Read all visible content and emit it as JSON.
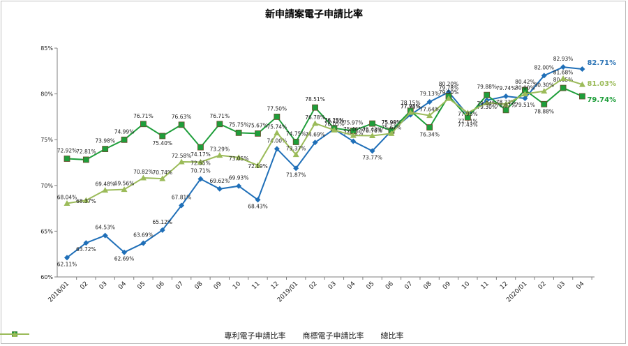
{
  "chart_data": {
    "type": "line",
    "title": "新申請案電子申請比率",
    "xlabel": "",
    "ylabel": "",
    "ylim": [
      60,
      85
    ],
    "yticks": [
      "60%",
      "65%",
      "70%",
      "75%",
      "80%",
      "85%"
    ],
    "grid": false,
    "legend_position": "bottom",
    "categories": [
      "2018/01",
      "02",
      "03",
      "04",
      "05",
      "06",
      "07",
      "08",
      "09",
      "10",
      "11",
      "12",
      "2019/01",
      "02",
      "03",
      "04",
      "05",
      "06",
      "07",
      "08",
      "09",
      "10",
      "11",
      "12",
      "2020/01",
      "02",
      "03",
      "04"
    ],
    "series": [
      {
        "name": "專利電子申請比率",
        "color": "#1f6fb8",
        "marker": "diamond",
        "values": [
          62.11,
          63.72,
          64.53,
          62.69,
          63.69,
          65.12,
          67.81,
          70.71,
          69.62,
          69.93,
          68.43,
          74.0,
          71.87,
          74.69,
          76.15,
          74.82,
          73.77,
          75.96,
          77.71,
          79.13,
          80.2,
          77.71,
          79.3,
          79.74,
          79.51,
          82.0,
          82.93,
          82.71
        ],
        "labels": [
          "62.11%",
          "63.72%",
          "64.53%",
          "62.69%",
          "63.69%",
          "65.12%",
          "67.81%",
          "70.71%",
          "69.62%",
          "69.93%",
          "68.43%",
          "74.00%",
          "71.87%",
          "74.69%",
          "76.15%",
          "74.82%",
          "73.77%",
          "75.96%",
          "77.71%",
          "79.13%",
          "80.20%",
          "77.71%",
          "79.30%",
          "79.74%",
          "79.51%",
          "82.00%",
          "82.93%",
          "82.71%"
        ]
      },
      {
        "name": "商標電子申請比率",
        "color": "#1e9e3a",
        "marker": "square",
        "values": [
          72.92,
          72.81,
          73.98,
          74.99,
          76.71,
          75.4,
          76.63,
          74.17,
          76.71,
          75.75,
          75.67,
          77.5,
          74.75,
          78.51,
          76.25,
          75.97,
          76.76,
          75.99,
          78.15,
          76.34,
          79.78,
          77.43,
          79.88,
          78.23,
          80.42,
          78.88,
          80.65,
          79.74
        ],
        "labels": [
          "72.92%",
          "72.81%",
          "73.98%",
          "74.99%",
          "76.71%",
          "75.40%",
          "76.63%",
          "74.17%",
          "76.71%",
          "75.75%",
          "75.67%",
          "77.50%",
          "74.75%",
          "78.51%",
          "76.25%",
          "75.97%",
          "76.76%",
          "75.99%",
          "78.15%",
          "76.34%",
          "79.78%",
          "77.43%",
          "79.88%",
          "78.23%",
          "80.42%",
          "78.88%",
          "80.65%",
          "79.74%"
        ]
      },
      {
        "name": "總比率",
        "color": "#9bbb59",
        "marker": "triangle",
        "values": [
          68.04,
          68.37,
          69.48,
          69.56,
          70.82,
          70.74,
          72.58,
          72.55,
          73.29,
          73.05,
          72.19,
          75.74,
          73.37,
          76.78,
          76.05,
          75.46,
          75.43,
          75.67,
          77.98,
          77.64,
          79.5,
          77.93,
          79.04,
          78.87,
          80.0,
          80.3,
          81.68,
          81.03
        ],
        "labels": [
          "68.04%",
          "68.37%",
          "69.48%",
          "69.56%",
          "70.82%",
          "70.74%",
          "72.58%",
          "72.55%",
          "73.29%",
          "73.05%",
          "72.19%",
          "75.74%",
          "73.37%",
          "76.78%",
          "76.05%",
          "75.46%",
          "75.43%",
          "75.67%",
          "77.98%",
          "77.64%",
          "79.50%",
          "77.93%",
          "79.04%",
          "78.87%",
          "80.00%",
          "80.30%",
          "81.68%",
          "81.03%"
        ]
      }
    ],
    "end_labels": [
      "82.71%",
      "81.03%",
      "79.74%"
    ]
  }
}
